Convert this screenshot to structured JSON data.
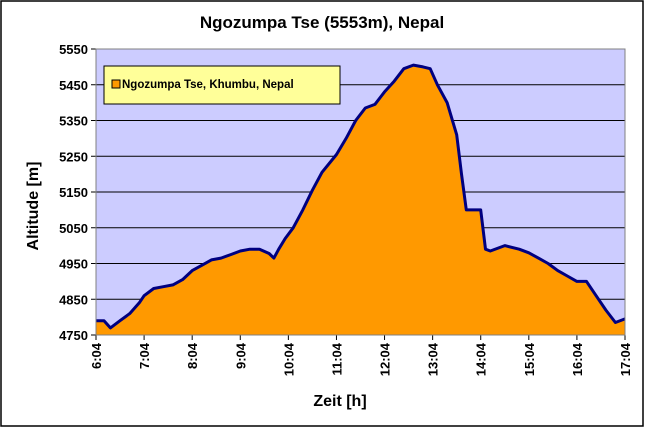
{
  "colors": {
    "plot_background": "#ccccff",
    "area_fill": "#ff9900",
    "line": "#000080",
    "legend_background": "#ffff99",
    "legend_marker": "#ff9900",
    "grid": "#000000"
  },
  "chart_data": {
    "type": "area",
    "title": "Ngozumpa Tse (5553m), Nepal",
    "xlabel": "Zeit [h]",
    "ylabel": "Altitude [m]",
    "legend_position": "top-left",
    "grid": true,
    "ylim": [
      4750,
      5550
    ],
    "yticks": [
      4750,
      4850,
      4950,
      5050,
      5150,
      5250,
      5350,
      5450,
      5550
    ],
    "xlim": [
      "6:04",
      "17:04"
    ],
    "xticks": [
      "6:04",
      "7:04",
      "8:04",
      "9:04",
      "10:04",
      "11:04",
      "12:04",
      "13:04",
      "14:04",
      "15:04",
      "16:04",
      "17:04"
    ],
    "series": [
      {
        "name": "Ngozumpa Tse, Khumbu, Nepal",
        "x": [
          "6:04",
          "6:14",
          "6:22",
          "6:34",
          "6:46",
          "6:58",
          "7:04",
          "7:16",
          "7:28",
          "7:40",
          "7:52",
          "8:04",
          "8:16",
          "8:28",
          "8:40",
          "8:52",
          "9:04",
          "9:16",
          "9:28",
          "9:40",
          "9:46",
          "9:52",
          "10:00",
          "10:10",
          "10:22",
          "10:34",
          "10:46",
          "11:04",
          "11:16",
          "11:28",
          "11:40",
          "11:52",
          "12:04",
          "12:16",
          "12:28",
          "12:40",
          "12:52",
          "13:01",
          "13:10",
          "13:22",
          "13:34",
          "13:40",
          "13:46",
          "13:52",
          "14:04",
          "14:10",
          "14:16",
          "14:34",
          "14:52",
          "15:04",
          "15:16",
          "15:28",
          "15:40",
          "15:52",
          "16:04",
          "16:16",
          "16:28",
          "16:40",
          "16:52",
          "17:04"
        ],
        "values": [
          4790,
          4790,
          4770,
          4790,
          4810,
          4840,
          4860,
          4880,
          4885,
          4890,
          4905,
          4930,
          4945,
          4960,
          4965,
          4975,
          4985,
          4990,
          4990,
          4978,
          4965,
          4990,
          5020,
          5050,
          5100,
          5155,
          5205,
          5255,
          5300,
          5350,
          5385,
          5395,
          5430,
          5460,
          5495,
          5505,
          5500,
          5495,
          5450,
          5400,
          5310,
          5200,
          5100,
          5100,
          5100,
          4990,
          4985,
          5000,
          4990,
          4980,
          4965,
          4950,
          4930,
          4915,
          4900,
          4900,
          4860,
          4820,
          4785,
          4795
        ]
      }
    ]
  }
}
